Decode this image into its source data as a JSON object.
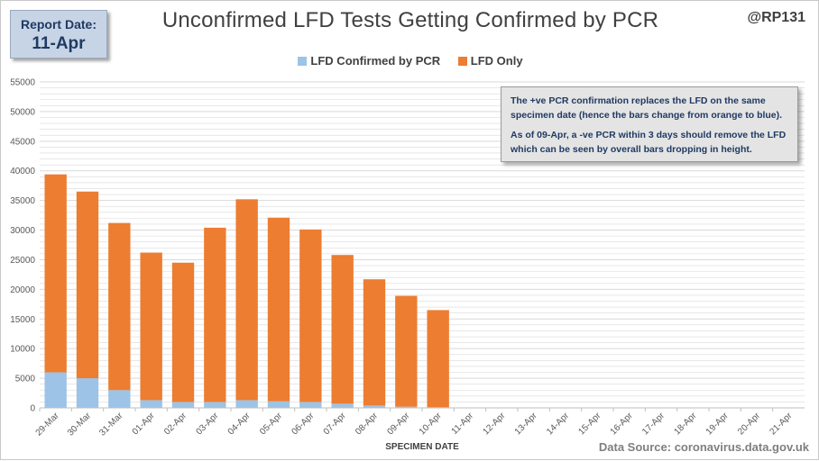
{
  "report_box": {
    "label": "Report Date:",
    "value": "11-Apr"
  },
  "handle": "@RP131",
  "annotation": {
    "line1": "The +ve PCR confirmation replaces the LFD on the same specimen date (hence the bars change from orange to blue).",
    "line2": "As of 09-Apr, a -ve PCR within 3 days should remove the LFD which can be seen by overall bars dropping  in height."
  },
  "source": "Data Source: coronavirus.data.gov.uk",
  "colors": {
    "confirmed": "#9dc3e6",
    "lfd_only": "#ed7d31",
    "grid": "#d9d9d9",
    "axis": "#bfbfbf"
  },
  "chart_data": {
    "type": "bar",
    "stacked": true,
    "title": "Unconfirmed LFD Tests Getting Confirmed by PCR",
    "xlabel": "SPECIMEN DATE",
    "ylabel": "",
    "ylim": [
      0,
      55000
    ],
    "y_tick_step": 5000,
    "y_ticks": [
      "0",
      "5000",
      "10000",
      "15000",
      "20000",
      "25000",
      "30000",
      "35000",
      "40000",
      "45000",
      "50000",
      "55000"
    ],
    "grid": true,
    "legend_position": "top",
    "categories": [
      "29-Mar",
      "30-Mar",
      "31-Mar",
      "01-Apr",
      "02-Apr",
      "03-Apr",
      "04-Apr",
      "05-Apr",
      "06-Apr",
      "07-Apr",
      "08-Apr",
      "09-Apr",
      "10-Apr",
      "11-Apr",
      "12-Apr",
      "13-Apr",
      "14-Apr",
      "15-Apr",
      "16-Apr",
      "17-Apr",
      "18-Apr",
      "19-Apr",
      "20-Apr",
      "21-Apr"
    ],
    "series": [
      {
        "name": "LFD Confirmed by PCR",
        "color": "#9dc3e6",
        "values": [
          6000,
          5000,
          3000,
          1300,
          1000,
          1000,
          1300,
          1100,
          1000,
          700,
          400,
          200,
          100,
          0,
          0,
          0,
          0,
          0,
          0,
          0,
          0,
          0,
          0,
          0
        ]
      },
      {
        "name": "LFD Only",
        "color": "#ed7d31",
        "values": [
          33400,
          31500,
          28200,
          24900,
          23500,
          29400,
          33900,
          31000,
          29100,
          25100,
          21300,
          18700,
          16400,
          0,
          0,
          0,
          0,
          0,
          0,
          0,
          0,
          0,
          0,
          0
        ]
      }
    ]
  }
}
